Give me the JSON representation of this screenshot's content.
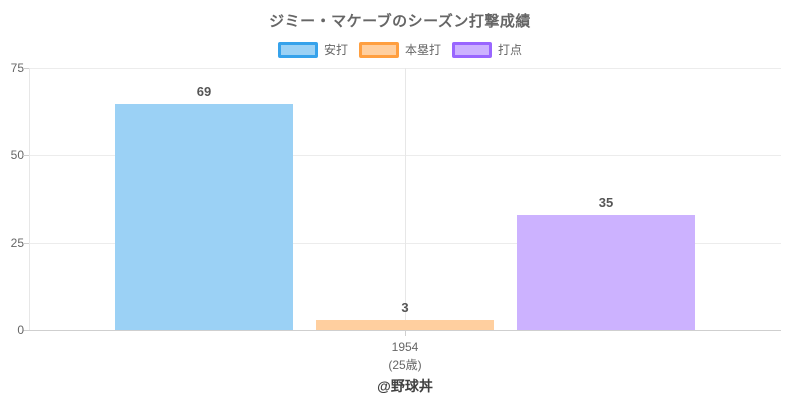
{
  "chart_data": {
    "type": "bar",
    "title": "ジミー・マケーブのシーズン打撃成績",
    "category": {
      "line1": "1954",
      "line2": "(25歳)"
    },
    "series": [
      {
        "name": "安打",
        "value": 69,
        "fill": "#9bd1f5",
        "border": "#36a2eb"
      },
      {
        "name": "本塁打",
        "value": 3,
        "fill": "#ffcf9f",
        "border": "#ff9f40"
      },
      {
        "name": "打点",
        "value": 35,
        "fill": "#ccb2ff",
        "border": "#9966ff"
      }
    ],
    "yticks": [
      0,
      25,
      50,
      75
    ],
    "ylim": [
      0,
      80
    ],
    "grid": true,
    "legend_position": "top",
    "footer": "@野球丼"
  }
}
